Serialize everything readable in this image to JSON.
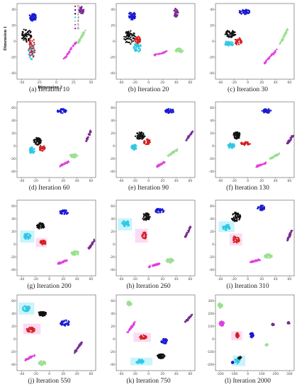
{
  "axes": {
    "ylabel": "Dimension 1",
    "xlabel": "Dimension 2"
  },
  "legend": {
    "entries": [
      "0",
      "1",
      "2",
      "3",
      "4",
      "5",
      "6"
    ],
    "colors": [
      "#d62020",
      "#1a1ad2",
      "#111111",
      "#2ec8e6",
      "#98e08e",
      "#e040e0",
      "#7a2a92"
    ]
  },
  "highlight_colors": {
    "cyan": "#bff2fb",
    "pink": "#fbd3f2"
  },
  "panels": [
    {
      "caption": "(a) Iteration 10",
      "yticks": [
        "40",
        "20",
        "0",
        "-20",
        "-40"
      ],
      "xticks": [
        "-50",
        "-25",
        "0",
        "25",
        "50"
      ]
    },
    {
      "caption": "(b) Iteration 20",
      "yticks": [
        "40",
        "20",
        "0",
        "-20",
        "-40"
      ],
      "xticks": [
        "-40",
        "-20",
        "0",
        "20",
        "40",
        "60"
      ]
    },
    {
      "caption": "(c) Iteration 30",
      "yticks": [
        "40",
        "20",
        "0",
        "-20",
        "-40"
      ],
      "xticks": [
        "-40",
        "-20",
        "0",
        "20",
        "40",
        "60"
      ]
    },
    {
      "caption": "(d) Iteration 60",
      "yticks": [
        "60",
        "40",
        "20",
        "0",
        "-20",
        "-40"
      ],
      "xticks": [
        "-40",
        "-20",
        "0",
        "20",
        "40",
        "60"
      ]
    },
    {
      "caption": "(e) Iteration 90",
      "yticks": [
        "60",
        "40",
        "20",
        "0",
        "-20",
        "-40"
      ],
      "xticks": [
        "-40",
        "-20",
        "0",
        "20",
        "40",
        "60"
      ]
    },
    {
      "caption": "(f) Iteration 130",
      "yticks": [
        "60",
        "40",
        "20",
        "0",
        "-20",
        "-40"
      ],
      "xticks": [
        "-40",
        "-20",
        "0",
        "20",
        "40",
        "60"
      ]
    },
    {
      "caption": "(g) Iteration 200",
      "yticks": [
        "60",
        "40",
        "20",
        "0",
        "-20",
        "-40"
      ],
      "xticks": [
        "-40",
        "-20",
        "0",
        "20",
        "40",
        "60"
      ]
    },
    {
      "caption": "(h) Iteration 260",
      "yticks": [
        "60",
        "40",
        "20",
        "0",
        "-20",
        "-40"
      ],
      "xticks": [
        "-40",
        "-20",
        "0",
        "20",
        "40",
        "60"
      ]
    },
    {
      "caption": "(i) Iteration 310",
      "yticks": [
        "60",
        "40",
        "20",
        "0",
        "-20",
        "-40"
      ],
      "xticks": [
        "-40",
        "-20",
        "0",
        "20",
        "40",
        "60"
      ]
    },
    {
      "caption": "(j) Iteration 550",
      "yticks": [
        "60",
        "40",
        "20",
        "0",
        "-20",
        "-40"
      ],
      "xticks": [
        "-40",
        "-20",
        "0",
        "20",
        "40",
        "60"
      ]
    },
    {
      "caption": "(k) Iteration 750",
      "yticks": [
        "60",
        "40",
        "20",
        "0",
        "-20",
        "-40"
      ],
      "xticks": [
        "-40",
        "-20",
        "0",
        "20",
        "40",
        "60"
      ]
    },
    {
      "caption": "(l) Iteration 2000",
      "yticks": [
        "300",
        "200",
        "100",
        "0",
        "-100",
        "-200"
      ],
      "xticks": [
        "-200",
        "-100",
        "0",
        "100",
        "200",
        "300"
      ]
    }
  ]
}
